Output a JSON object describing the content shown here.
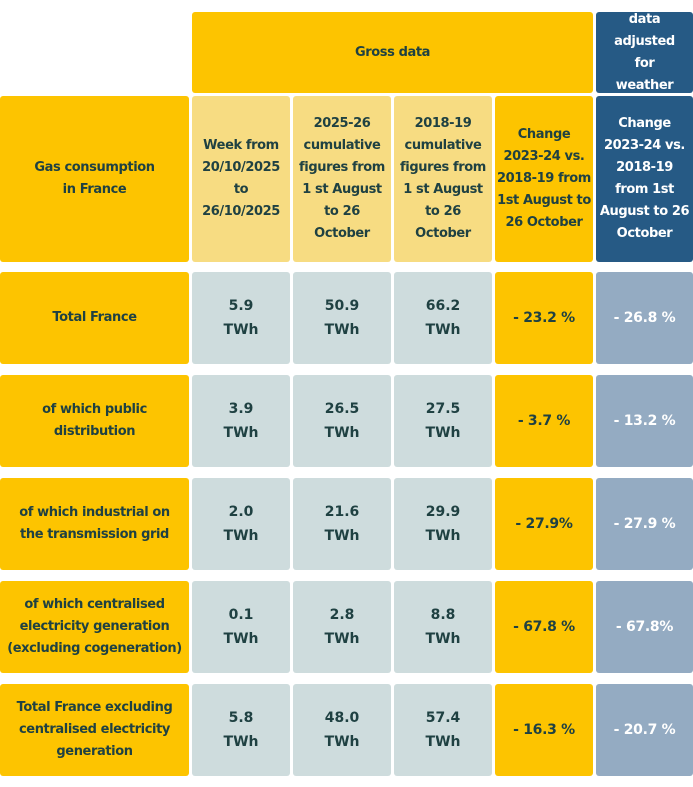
{
  "header": {
    "gross_data": "Gross data",
    "adjusted": "data adjusted for weather",
    "row_label": "Gas consumption in France",
    "columns": [
      "Week from 20/10/2025 to 26/10/2025",
      "2025-26 cumulative figures from 1 st August to 26 October",
      "2018-19 cumulative figures from 1 st August to 26 October",
      "Change 2023-24 vs. 2018-19 from 1st August to 26 October",
      "Change 2023-24 vs. 2018-19 from 1st August to 26 October"
    ]
  },
  "rows": [
    {
      "label": "Total France",
      "week": "5.9 TWh",
      "cum_2025": "50.9 TWh",
      "cum_2018": "66.2 TWh",
      "change": "- 23.2 %",
      "adjusted": "- 26.8 %"
    },
    {
      "label": "of which public distribution",
      "week": "3.9 TWh",
      "cum_2025": "26.5 TWh",
      "cum_2018": "27.5 TWh",
      "change": "- 3.7 %",
      "adjusted": "- 13.2 %"
    },
    {
      "label": "of which industrial on the transmission grid",
      "week": "2.0 TWh",
      "cum_2025": "21.6 TWh",
      "cum_2018": "29.9 TWh",
      "change": "- 27.9%",
      "adjusted": "- 27.9 %"
    },
    {
      "label": "of which centralised electricity generation (excluding cogeneration)",
      "week": "0.1 TWh",
      "cum_2025": "2.8 TWh",
      "cum_2018": "8.8 TWh",
      "change": "- 67.8 %",
      "adjusted": "- 67.8%"
    },
    {
      "label": "Total France excluding centralised electricity generation",
      "week": "5.8 TWh",
      "cum_2025": "48.0 TWh",
      "cum_2018": "57.4 TWh",
      "change": "- 16.3 %",
      "adjusted": "- 20.7 %"
    }
  ],
  "colors": {
    "yellow": "#fdc400",
    "light_yellow": "#f7dc82",
    "dark_blue": "#265a85",
    "light_gray": "#cedcdd",
    "gray_blue": "#94abc2",
    "text": "#1f4142"
  }
}
